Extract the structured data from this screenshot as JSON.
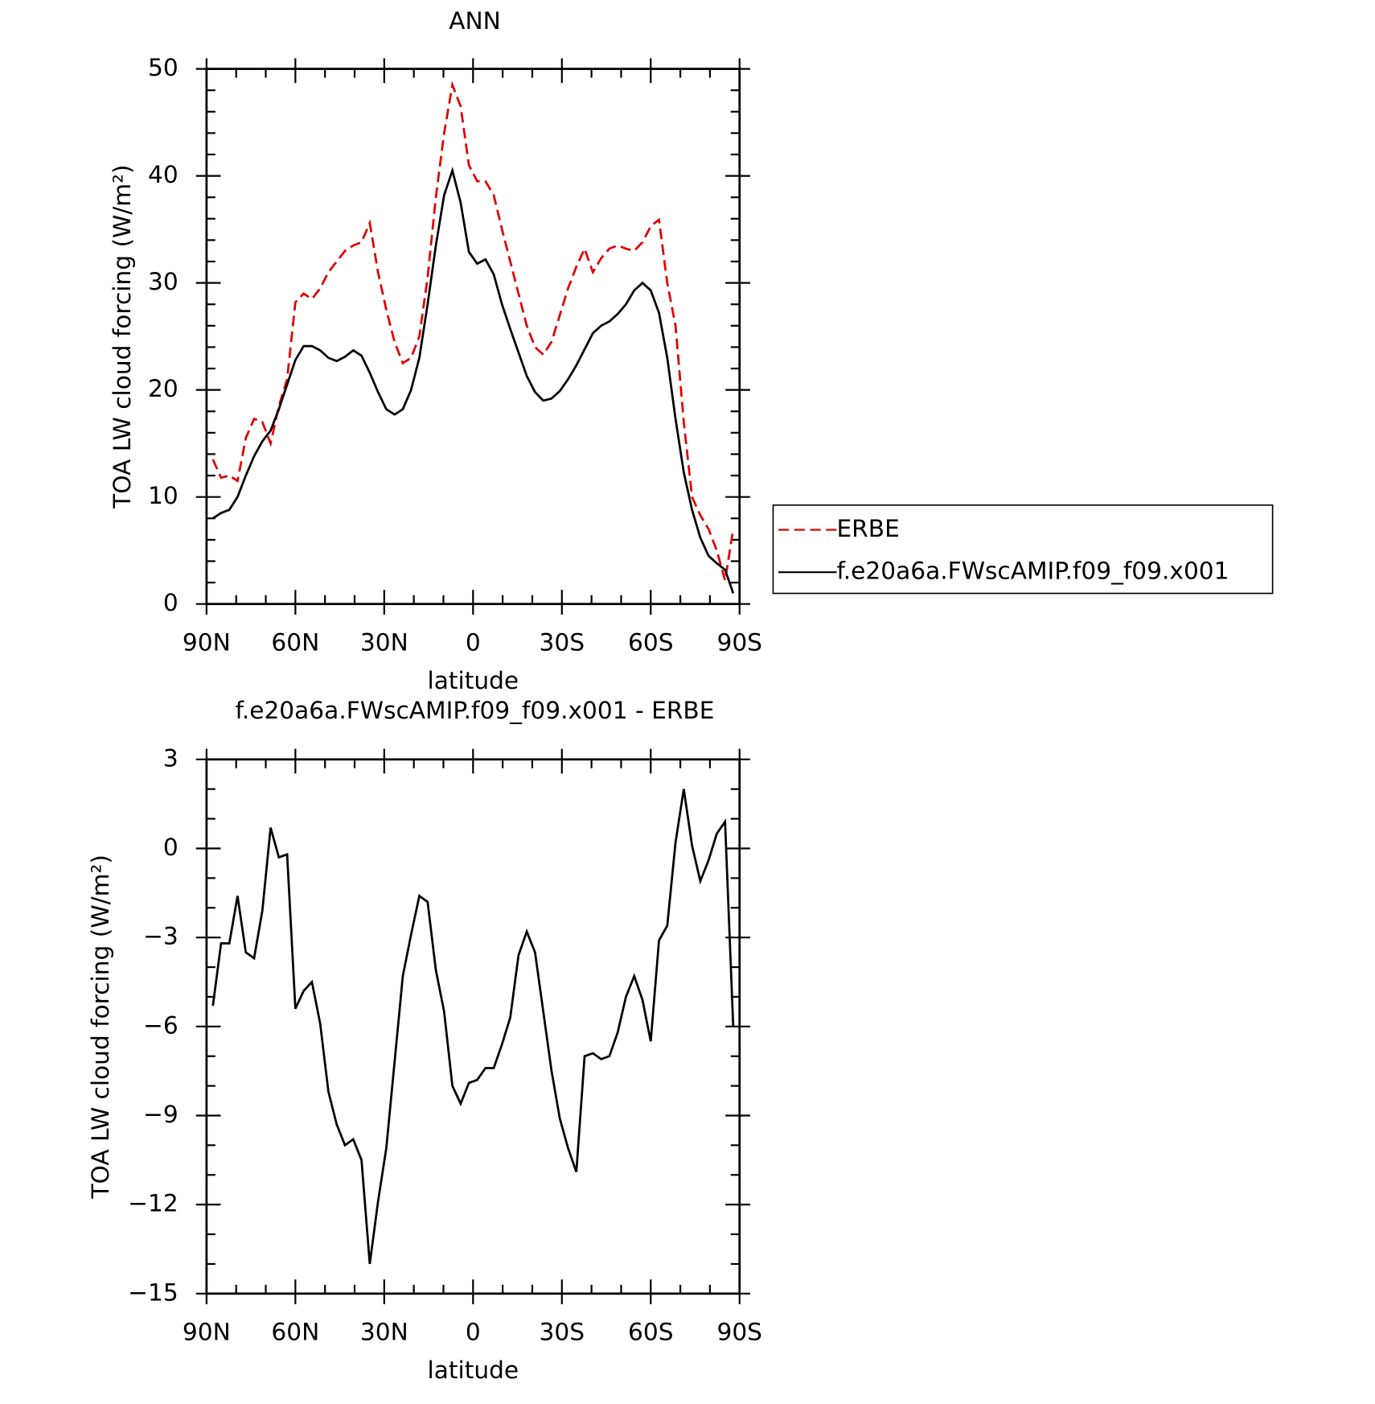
{
  "chart_data": [
    {
      "type": "line",
      "title": "ANN",
      "x_label": "latitude",
      "y_label": "TOA LW cloud forcing (W/m²)",
      "x": [
        87.86,
        85.1,
        82.31,
        79.53,
        76.74,
        73.95,
        71.16,
        68.37,
        65.58,
        62.79,
        60.0,
        57.21,
        54.42,
        51.63,
        48.84,
        46.04,
        43.25,
        40.46,
        37.67,
        34.88,
        32.09,
        29.3,
        26.51,
        23.72,
        20.93,
        18.14,
        15.35,
        12.56,
        9.77,
        6.98,
        4.19,
        1.4,
        -1.4,
        -4.19,
        -6.98,
        -9.77,
        -12.56,
        -15.35,
        -18.14,
        -20.93,
        -23.72,
        -26.51,
        -29.3,
        -32.09,
        -34.88,
        -37.67,
        -40.46,
        -43.25,
        -46.04,
        -48.84,
        -51.63,
        -54.42,
        -57.21,
        -60.0,
        -62.79,
        -65.58,
        -68.37,
        -71.16,
        -73.95,
        -76.74,
        -79.53,
        -82.31,
        -85.1,
        -87.86
      ],
      "series": [
        {
          "name": "ERBE",
          "color": "#e00000",
          "line_style": "dashed",
          "values": [
            13.5,
            11.8,
            12,
            11.5,
            15.5,
            17.3,
            17,
            15,
            18.5,
            21,
            28.2,
            29,
            28.5,
            29.5,
            31,
            32,
            33,
            33.5,
            33.8,
            35.6,
            31,
            27.5,
            24.5,
            22.5,
            23,
            25,
            30.5,
            38,
            44,
            48.5,
            46.5,
            41,
            39.5,
            39.5,
            38.2,
            35,
            32,
            29,
            26,
            24,
            23.3,
            24.5,
            27,
            29.5,
            31.5,
            33.2,
            31,
            32.3,
            33.2,
            33.5,
            33.2,
            33,
            33.8,
            35.3,
            35.9,
            30,
            26,
            17,
            10,
            8.3,
            7,
            5,
            2.2,
            7.0
          ]
        },
        {
          "name": "f.e20a6a.FWscAMIP.f09_f09.x001",
          "color": "#000000",
          "line_style": "solid",
          "values": [
            8.0,
            8.5,
            8.8,
            10,
            12,
            13.8,
            15.2,
            16.2,
            18.2,
            20.5,
            22.8,
            24.1,
            24.1,
            23.7,
            23,
            22.7,
            23.1,
            23.7,
            23.2,
            21.6,
            19.8,
            18.2,
            17.7,
            18.2,
            20,
            23,
            28,
            33.5,
            38.2,
            40.5,
            37.5,
            32.9,
            31.8,
            32.2,
            30.8,
            28,
            25.7,
            23.5,
            21.3,
            19.8,
            19,
            19.2,
            19.9,
            21,
            22.3,
            23.8,
            25.3,
            26,
            26.4,
            27.1,
            28,
            29.3,
            30,
            29.3,
            27.2,
            23,
            17.3,
            12.3,
            8.8,
            6.2,
            4.5,
            3.8,
            3.2,
            1.0
          ]
        }
      ],
      "xlim": [
        90,
        -90
      ],
      "xticks": [
        {
          "value": 90,
          "label": "90N"
        },
        {
          "value": 60,
          "label": "60N"
        },
        {
          "value": 30,
          "label": "30N"
        },
        0,
        {
          "value": -30,
          "label": "30S"
        },
        {
          "value": -60,
          "label": "60S"
        },
        {
          "value": -90,
          "label": "90S"
        }
      ],
      "ylim": [
        0,
        50
      ],
      "yticks": [
        0,
        10,
        20,
        30,
        40,
        50
      ],
      "legend": "right"
    },
    {
      "type": "line",
      "title": "f.e20a6a.FWscAMIP.f09_f09.x001 - ERBE",
      "x_label": "latitude",
      "y_label": "TOA LW cloud forcing (W/m²)",
      "x": [
        87.86,
        85.1,
        82.31,
        79.53,
        76.74,
        73.95,
        71.16,
        68.37,
        65.58,
        62.79,
        60.0,
        57.21,
        54.42,
        51.63,
        48.84,
        46.04,
        43.25,
        40.46,
        37.67,
        34.88,
        32.09,
        29.3,
        26.51,
        23.72,
        20.93,
        18.14,
        15.35,
        12.56,
        9.77,
        6.98,
        4.19,
        1.4,
        -1.4,
        -4.19,
        -6.98,
        -9.77,
        -12.56,
        -15.35,
        -18.14,
        -20.93,
        -23.72,
        -26.51,
        -29.3,
        -32.09,
        -34.88,
        -37.67,
        -40.46,
        -43.25,
        -46.04,
        -48.84,
        -51.63,
        -54.42,
        -57.21,
        -60.0,
        -62.79,
        -65.58,
        -68.37,
        -71.16,
        -73.95,
        -76.74,
        -79.53,
        -82.31,
        -85.1,
        -87.86
      ],
      "series": [
        {
          "color": "#000000",
          "line_style": "solid",
          "values": [
            -5.3,
            -3.2,
            -3.2,
            -1.6,
            -3.5,
            -3.7,
            -2.1,
            0.7,
            -0.3,
            -0.2,
            -5.4,
            -4.8,
            -4.5,
            -5.9,
            -8.2,
            -9.3,
            -10,
            -9.8,
            -10.5,
            -14,
            -11.9,
            -10.1,
            -7.2,
            -4.3,
            -2.9,
            -1.6,
            -1.8,
            -4.1,
            -5.5,
            -8,
            -8.6,
            -7.9,
            -7.8,
            -7.4,
            -7.4,
            -6.6,
            -5.7,
            -3.6,
            -2.8,
            -3.5,
            -5.5,
            -7.5,
            -9.1,
            -10.1,
            -10.9,
            -7.0,
            -6.9,
            -7.1,
            -7.0,
            -6.2,
            -5.0,
            -4.3,
            -5.1,
            -6.5,
            -3.1,
            -2.6,
            0.2,
            2.0,
            0.1,
            -1.1,
            -0.4,
            0.5,
            0.9,
            -6.0
          ]
        }
      ],
      "xlim": [
        90,
        -90
      ],
      "xticks": [
        {
          "value": 90,
          "label": "90N"
        },
        {
          "value": 60,
          "label": "60N"
        },
        {
          "value": 30,
          "label": "30N"
        },
        0,
        {
          "value": -30,
          "label": "30S"
        },
        {
          "value": -60,
          "label": "60S"
        },
        {
          "value": -90,
          "label": "90S"
        }
      ],
      "ylim": [
        -15,
        3
      ],
      "yticks": [
        {
          "value": -15,
          "label": "−15"
        },
        {
          "value": -12,
          "label": "−12"
        },
        {
          "value": -9,
          "label": "−9"
        },
        {
          "value": -6,
          "label": "−6"
        },
        {
          "value": -3,
          "label": "−3"
        },
        0,
        3
      ]
    }
  ]
}
